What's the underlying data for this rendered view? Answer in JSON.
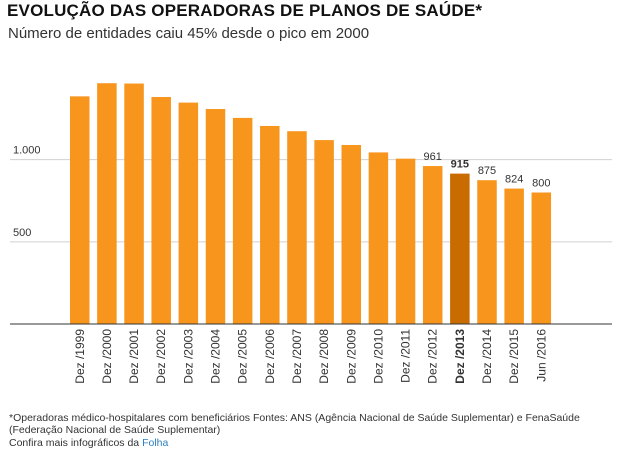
{
  "title": "EVOLUÇÃO DAS OPERADORAS DE PLANOS DE SAÚDE*",
  "subtitle": "Número de entidades caiu 45% desde o pico em 2000",
  "footnote": "*Operadoras médico-hospitalares com beneficiários Fontes: ANS (Agência Nacional de Saúde Suplementar) e FenaSaúde (Federação Nacional de Saúde Suplementar)",
  "more_prefix": "Confira mais infográficos da ",
  "more_brand": "Folha",
  "colors": {
    "bar": "#f7951d",
    "highlight": "#c96c00",
    "grid": "#d0d0d0",
    "axis": "#333333",
    "link": "#2a7fc1"
  },
  "chart_data": {
    "type": "bar",
    "categories": [
      "Dez /1999",
      "Dez /2000",
      "Dez /2001",
      "Dez /2002",
      "Dez /2003",
      "Dez /2004",
      "Dez /2005",
      "Dez /2006",
      "Dez /2007",
      "Dez /2008",
      "Dez /2009",
      "Dez /2010",
      "Dez /2011",
      "Dez /2012",
      "Dez /2013",
      "Dez /2014",
      "Dez /2015",
      "Jun /2016"
    ],
    "values": [
      1385,
      1465,
      1463,
      1381,
      1347,
      1308,
      1254,
      1205,
      1173,
      1119,
      1089,
      1044,
      1006,
      961,
      915,
      875,
      824,
      800
    ],
    "data_labels": [
      "",
      "",
      "",
      "",
      "",
      "",
      "",
      "",
      "",
      "",
      "",
      "",
      "",
      "961",
      "915",
      "875",
      "824",
      "800"
    ],
    "highlight_category": "Dez /2013",
    "yticks": [
      {
        "value": 500,
        "label": "500"
      },
      {
        "value": 1000,
        "label": "1.000"
      }
    ],
    "ylim": [
      0,
      1500
    ],
    "grid": true
  }
}
